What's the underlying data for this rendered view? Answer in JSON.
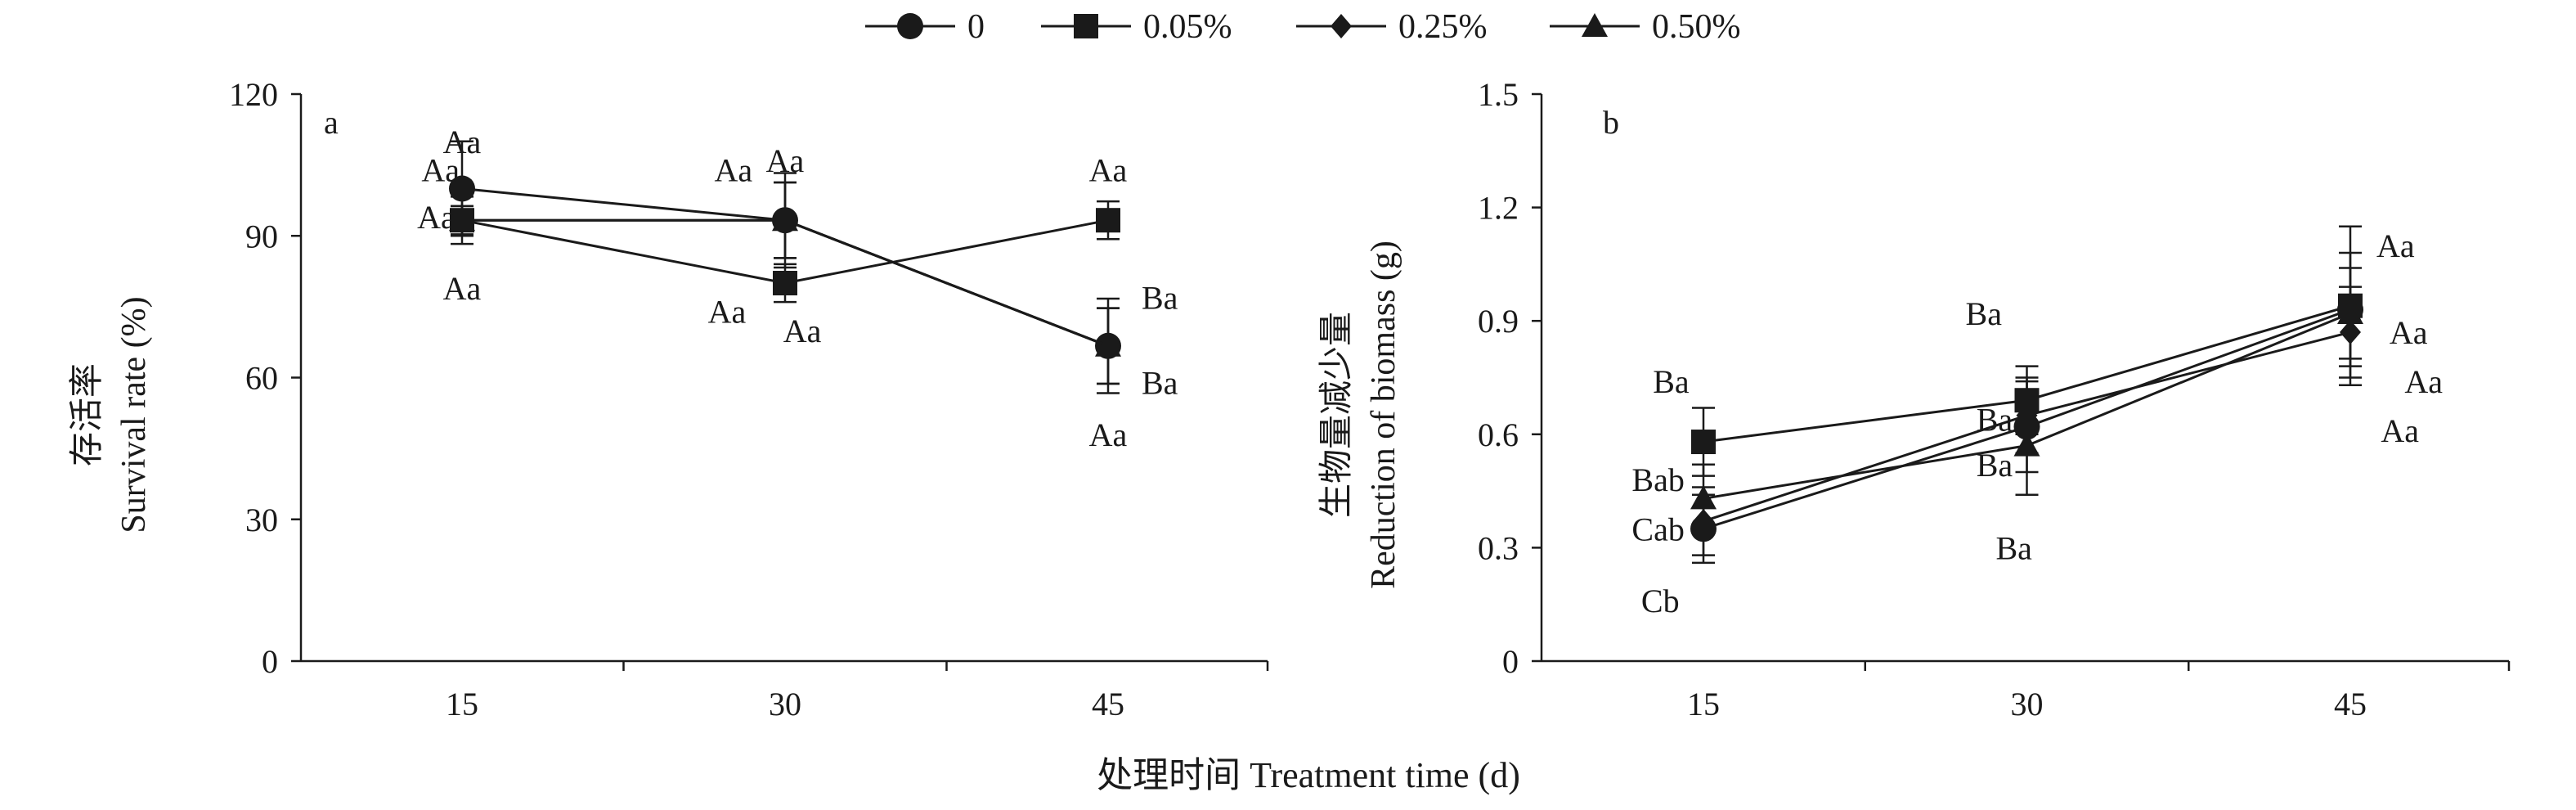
{
  "legend": {
    "placement": "top-center",
    "items": [
      {
        "label": "0",
        "marker": "circle"
      },
      {
        "label": "0.05%",
        "marker": "square"
      },
      {
        "label": "0.25%",
        "marker": "diamond"
      },
      {
        "label": "0.50%",
        "marker": "triangle"
      }
    ]
  },
  "figure": {
    "xlabel": "处理时间 Treatment time (d)",
    "colors": {
      "ink": "#1a1a1a",
      "background": "#ffffff"
    }
  },
  "chart_data": [
    {
      "type": "line",
      "panel_label": "a",
      "ylabel_cn": "存活率",
      "ylabel_en": "Survival rate (%)",
      "x": [
        15,
        30,
        45
      ],
      "xticks": [
        "15",
        "30",
        "45"
      ],
      "yticks": [
        "0",
        "30",
        "60",
        "90",
        "120"
      ],
      "ylim": [
        0,
        120
      ],
      "grid": false,
      "series": [
        {
          "name": "0",
          "marker": "circle",
          "values": [
            100,
            93.3,
            66.7
          ],
          "err": [
            10,
            10,
            10
          ]
        },
        {
          "name": "0.05%",
          "marker": "square",
          "values": [
            93.3,
            80,
            93.3
          ],
          "err": [
            5,
            4,
            4
          ]
        },
        {
          "name": "0.25%",
          "marker": "diamond",
          "values": [
            93.3,
            93.3,
            66.7
          ],
          "err": [
            3,
            8,
            8
          ]
        },
        {
          "name": "0.50%",
          "marker": "triangle",
          "values": [
            93.3,
            93.3,
            66.7
          ],
          "err": [
            3,
            8,
            8
          ]
        }
      ],
      "annotations": [
        {
          "text": "Aa",
          "x": 15,
          "y": 110
        },
        {
          "text": "Aa",
          "x": 14.0,
          "y": 104
        },
        {
          "text": "Aa",
          "x": 13.8,
          "y": 94
        },
        {
          "text": "Aa",
          "x": 15,
          "y": 79
        },
        {
          "text": "Aa",
          "x": 27.6,
          "y": 104
        },
        {
          "text": "Aa",
          "x": 30,
          "y": 106
        },
        {
          "text": "Aa",
          "x": 27.3,
          "y": 74
        },
        {
          "text": "Aa",
          "x": 30.8,
          "y": 70
        },
        {
          "text": "Aa",
          "x": 45,
          "y": 104
        },
        {
          "text": "Ba",
          "x": 47.4,
          "y": 77
        },
        {
          "text": "Ba",
          "x": 47.4,
          "y": 59
        },
        {
          "text": "Aa",
          "x": 45,
          "y": 48
        }
      ]
    },
    {
      "type": "line",
      "panel_label": "b",
      "ylabel_cn": "生物量减少量",
      "ylabel_en": "Reduction of biomass (g)",
      "x": [
        15,
        30,
        45
      ],
      "xticks": [
        "15",
        "30",
        "45"
      ],
      "yticks": [
        "0",
        "0.3",
        "0.6",
        "0.9",
        "1.2",
        "1.5"
      ],
      "ylim": [
        0,
        1.5
      ],
      "grid": false,
      "series": [
        {
          "name": "0",
          "marker": "circle",
          "values": [
            0.35,
            0.62,
            0.93
          ],
          "err": [
            0.09,
            0.12,
            0.15
          ]
        },
        {
          "name": "0.05%",
          "marker": "square",
          "values": [
            0.58,
            0.69,
            0.94
          ],
          "err": [
            0.09,
            0.09,
            0.21
          ]
        },
        {
          "name": "0.25%",
          "marker": "diamond",
          "values": [
            0.37,
            0.65,
            0.87
          ],
          "err": [
            0.09,
            0.1,
            0.12
          ]
        },
        {
          "name": "0.50%",
          "marker": "triangle",
          "values": [
            0.43,
            0.57,
            0.92
          ],
          "err": [
            0.09,
            0.13,
            0.12
          ]
        }
      ],
      "annotations": [
        {
          "text": "Ba",
          "x": 13.5,
          "y": 0.74
        },
        {
          "text": "Bab",
          "x": 12.9,
          "y": 0.48
        },
        {
          "text": "Cab",
          "x": 12.9,
          "y": 0.35
        },
        {
          "text": "Cb",
          "x": 13.0,
          "y": 0.16
        },
        {
          "text": "Ba",
          "x": 28.0,
          "y": 0.92
        },
        {
          "text": "Ba",
          "x": 28.5,
          "y": 0.64
        },
        {
          "text": "Ba",
          "x": 28.5,
          "y": 0.52
        },
        {
          "text": "Ba",
          "x": 29.4,
          "y": 0.3
        },
        {
          "text": "Aa",
          "x": 47.1,
          "y": 1.1
        },
        {
          "text": "Aa",
          "x": 47.7,
          "y": 0.87
        },
        {
          "text": "Aa",
          "x": 48.4,
          "y": 0.74
        },
        {
          "text": "Aa",
          "x": 47.3,
          "y": 0.61
        }
      ]
    }
  ]
}
